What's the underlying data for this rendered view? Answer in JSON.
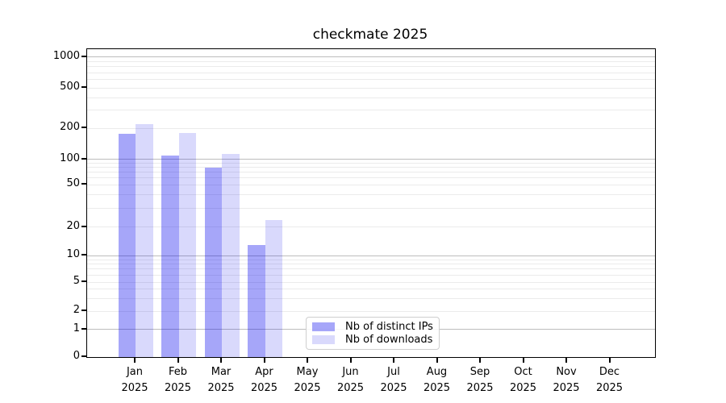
{
  "chart_data": {
    "type": "bar",
    "title": "checkmate 2025",
    "categories": [
      "Jan",
      "Feb",
      "Mar",
      "Apr",
      "May",
      "Jun",
      "Jul",
      "Aug",
      "Sep",
      "Oct",
      "Nov",
      "Dec"
    ],
    "year_label": "2025",
    "series": [
      {
        "name": "Nb of distinct IPs",
        "color": "rgba(0,0,238,0.35)",
        "values": [
          175,
          108,
          80,
          13,
          0,
          0,
          0,
          0,
          0,
          0,
          0,
          0
        ]
      },
      {
        "name": "Nb of downloads",
        "color": "rgba(0,0,238,0.15)",
        "values": [
          220,
          180,
          112,
          23,
          0,
          0,
          0,
          0,
          0,
          0,
          0,
          0
        ]
      }
    ],
    "yticks": [
      0,
      1,
      2,
      5,
      10,
      20,
      50,
      100,
      200,
      500,
      1000
    ],
    "ylim": [
      0,
      1200
    ],
    "yscale": "log-like (asinh) with linear segment between 0 and 1",
    "grid": "horizontal, major (powers of 10) darker + minor lighter",
    "legend_position": "inside axes, lower center-left",
    "colors": {
      "major_grid": "#bdbdbd",
      "minor_grid": "#ebebeb",
      "axis": "#000000",
      "background": "#ffffff"
    }
  }
}
